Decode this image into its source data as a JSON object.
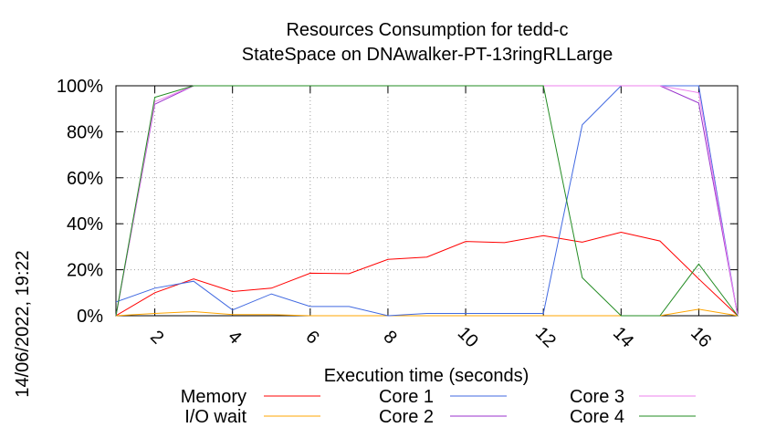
{
  "chart_data": {
    "type": "line",
    "title": "Resources Consumption for tedd-c",
    "subtitle": "StateSpace on DNAwalker-PT-13ringRLLarge",
    "xlabel": "Execution time (seconds)",
    "ylabel": "",
    "side_label": "14/06/2022, 19:22",
    "xlim": [
      1,
      17
    ],
    "ylim": [
      0,
      100
    ],
    "x_ticks": [
      2,
      4,
      6,
      8,
      10,
      12,
      14,
      16
    ],
    "y_ticks": [
      0,
      20,
      40,
      60,
      80,
      100
    ],
    "y_tick_labels": [
      "0%",
      "20%",
      "40%",
      "60%",
      "80%",
      "100%"
    ],
    "grid": true,
    "legend_placement": "bottom",
    "x": [
      1,
      2,
      3,
      4,
      5,
      6,
      7,
      8,
      9,
      10,
      11,
      12,
      13,
      14,
      15,
      16,
      17
    ],
    "series": [
      {
        "name": "Memory",
        "color": "#ff0000",
        "values": [
          0,
          10,
          16,
          10.5,
          12,
          18.5,
          18.3,
          24.5,
          25.5,
          32.3,
          31.8,
          34.8,
          32,
          36.3,
          32.5,
          16,
          0
        ]
      },
      {
        "name": "I/O wait",
        "color": "#ffa500",
        "values": [
          0,
          1,
          1.8,
          0.5,
          0.5,
          0,
          0,
          0,
          0,
          0,
          0,
          0,
          0,
          0,
          0,
          2.8,
          0
        ]
      },
      {
        "name": "Core 1",
        "color": "#4169e1",
        "values": [
          6,
          12,
          15,
          2.5,
          9.5,
          4,
          4,
          0,
          1,
          1,
          1,
          1,
          83,
          100,
          100,
          100,
          0
        ]
      },
      {
        "name": "Core 2",
        "color": "#9932cc",
        "values": [
          0,
          92,
          100,
          100,
          100,
          100,
          100,
          100,
          100,
          100,
          100,
          100,
          100,
          100,
          100,
          92.5,
          0
        ]
      },
      {
        "name": "Core 3",
        "color": "#ee82ee",
        "values": [
          0,
          93,
          100,
          100,
          100,
          100,
          100,
          100,
          100,
          100,
          100,
          100,
          100,
          100,
          100,
          97,
          0
        ]
      },
      {
        "name": "Core 4",
        "color": "#228b22",
        "values": [
          0,
          95,
          100,
          100,
          100,
          100,
          100,
          100,
          100,
          100,
          100,
          100,
          16.5,
          0,
          0,
          22.5,
          0
        ]
      }
    ],
    "legend_order": [
      "Memory",
      "Core 1",
      "Core 3",
      "I/O wait",
      "Core 2",
      "Core 4"
    ]
  }
}
